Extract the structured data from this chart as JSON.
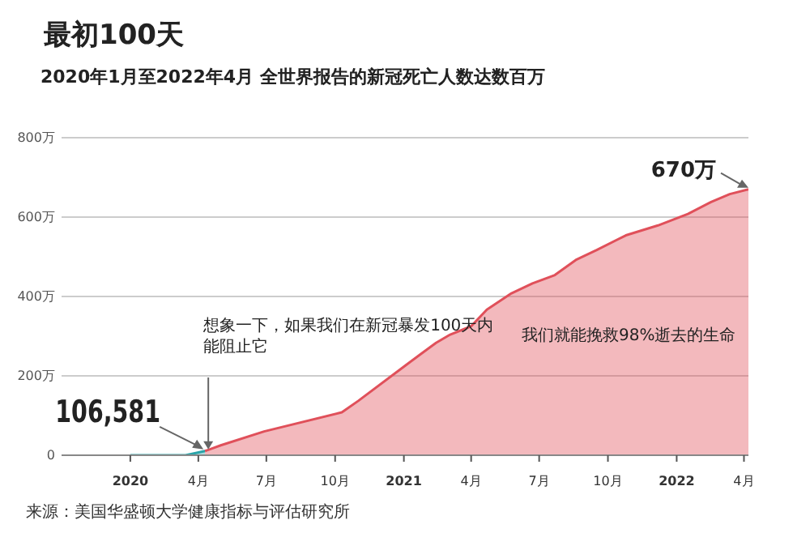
{
  "chart_data": {
    "type": "area",
    "title": "最初100天",
    "subtitle": "2020年1月至2022年4月 全世界报告的新冠死亡人数达数百万",
    "annotations": [
      {
        "text": "想象一下，如果我们在新冠暴发100天内能阻止它",
        "x": "2020-04-10",
        "y": 10.6581
      },
      "我们就能挽救98%逝去的生命",
      {
        "text": "106,581",
        "x": "2020-04-10",
        "y": 10.6581
      },
      {
        "text": "670万",
        "x": "2022-04-07",
        "y": 670
      },
      "来源：美国华盛顿大学健康指标与评估研究所"
    ],
    "series": [
      {
        "color": "#2aa3a8",
        "x": [
          "2020-01-01",
          "2020-02-15",
          "2020-03-15",
          "2020-04-10"
        ],
        "values": [
          0,
          0,
          0,
          10.6581
        ]
      },
      {
        "color": "#e0505a",
        "x": [
          "2020-04-10",
          "2020-05-01",
          "2020-06-28",
          "2020-10-10",
          "2020-11-01",
          "2021-01-03",
          "2021-01-23",
          "2021-02-13",
          "2021-03-04",
          "2021-04-01",
          "2021-04-22",
          "2021-05-25",
          "2021-06-22",
          "2021-07-22",
          "2021-08-19",
          "2021-09-16",
          "2021-10-25",
          "2021-12-07",
          "2022-01-16",
          "2022-02-16",
          "2022-03-13",
          "2022-04-07"
        ],
        "values": [
          10.6581,
          25,
          60,
          108,
          137,
          226,
          254,
          283,
          304,
          325,
          367,
          408,
          433,
          454,
          492,
          517,
          554,
          579,
          608,
          638,
          658,
          670
        ]
      }
    ],
    "xlim": [
      "2019-10-01",
      "2022-04-07"
    ],
    "xticks": [
      {
        "value": "2020-01-01",
        "label": "2020"
      },
      {
        "value": "2020-04-01",
        "label": "4月"
      },
      {
        "value": "2020-07-01",
        "label": "7月"
      },
      {
        "value": "2020-10-01",
        "label": "10月"
      },
      {
        "value": "2021-01-01",
        "label": "2021"
      },
      {
        "value": "2021-04-01",
        "label": "4月"
      },
      {
        "value": "2021-07-01",
        "label": "7月"
      },
      {
        "value": "2021-10-01",
        "label": "10月"
      },
      {
        "value": "2022-01-01",
        "label": "2022"
      },
      {
        "value": "2022-04-01",
        "label": "4月"
      }
    ],
    "ylim": [
      0,
      800
    ],
    "yticks": [
      0,
      {
        "value": 200,
        "label": "200万"
      },
      {
        "value": 400,
        "label": "400万"
      },
      {
        "value": 600,
        "label": "600万"
      },
      {
        "value": 800,
        "label": "800万"
      }
    ],
    "grid": "y",
    "legend": false
  }
}
